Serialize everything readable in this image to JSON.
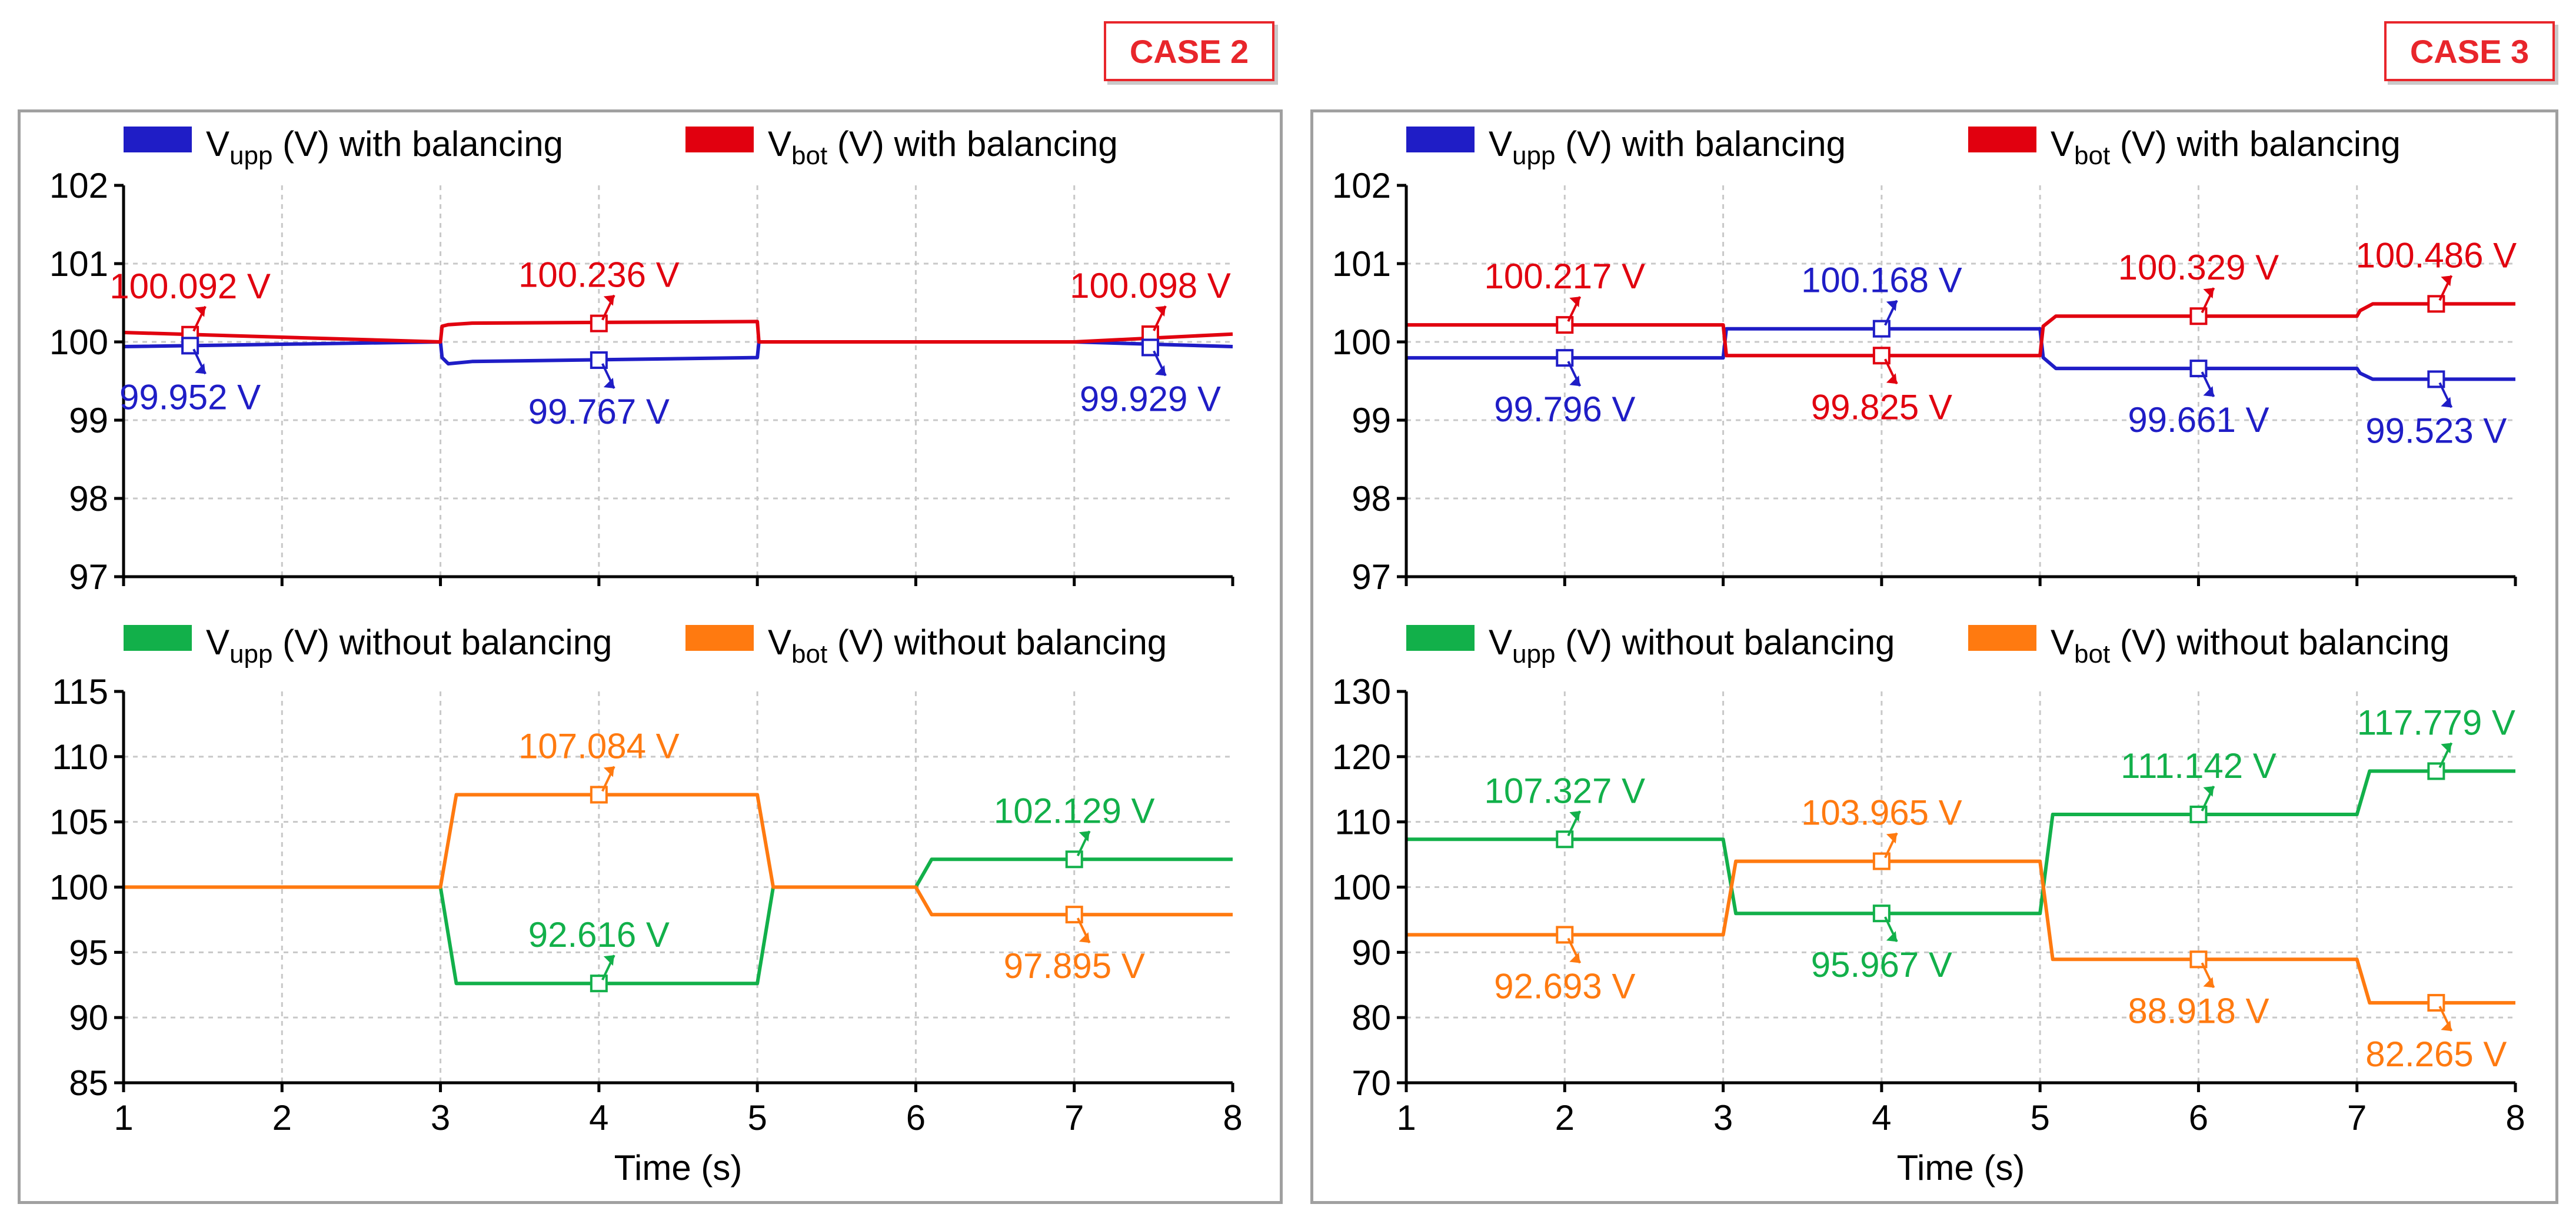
{
  "cases": [
    {
      "label": "CASE 2"
    },
    {
      "label": "CASE 3"
    }
  ],
  "legend": {
    "top": [
      {
        "sym": "V",
        "sub": "upp",
        "rest": " (V) with balancing",
        "color": "#1f1dc6"
      },
      {
        "sym": "V",
        "sub": "bot",
        "rest": " (V) with balancing",
        "color": "#e1000f"
      }
    ],
    "bottom": [
      {
        "sym": "V",
        "sub": "upp",
        "rest": " (V) without balancing",
        "color": "#12b04a"
      },
      {
        "sym": "V",
        "sub": "bot",
        "rest": " (V) without balancing",
        "color": "#ff7a10"
      }
    ]
  },
  "colors": {
    "upp_with": "#1f1dc6",
    "bot_with": "#e1000f",
    "upp_without": "#12b04a",
    "bot_without": "#ff7a10",
    "grid": "#c8c8c8",
    "frame": "#a0a0a0",
    "case": "#e8262b"
  },
  "chart_data": [
    {
      "type": "line",
      "case": "CASE 2",
      "position": "top",
      "xlim": [
        1,
        8
      ],
      "ylim": [
        97,
        102
      ],
      "xticks": [
        1,
        2,
        3,
        4,
        5,
        6,
        7,
        8
      ],
      "yticks": [
        97,
        98,
        99,
        100,
        101,
        102
      ],
      "show_x_ticklabels": false,
      "grid": true,
      "series": [
        {
          "name": "Vupp (V) with balancing",
          "color_key": "upp_with",
          "x": [
            1,
            3,
            3.01,
            3.05,
            3.2,
            5,
            5.01,
            6,
            7,
            8
          ],
          "y": [
            99.94,
            100,
            99.8,
            99.72,
            99.75,
            99.8,
            100,
            100,
            100,
            99.94
          ]
        },
        {
          "name": "Vbot (V) with balancing",
          "color_key": "bot_with",
          "x": [
            1,
            3,
            3.01,
            3.05,
            3.2,
            5,
            5.01,
            6,
            7,
            8
          ],
          "y": [
            100.12,
            100,
            100.2,
            100.22,
            100.24,
            100.26,
            100,
            100,
            100,
            100.1
          ]
        }
      ],
      "annotations": [
        {
          "text": "100.092 V",
          "x": 1.42,
          "y": 100.092,
          "series": "bot",
          "label_pos": "above"
        },
        {
          "text": "99.952 V",
          "x": 1.42,
          "y": 99.952,
          "series": "upp",
          "label_pos": "below"
        },
        {
          "text": "100.236 V",
          "x": 4,
          "y": 100.236,
          "series": "bot",
          "label_pos": "above"
        },
        {
          "text": "99.767 V",
          "x": 4,
          "y": 99.767,
          "series": "upp",
          "label_pos": "below"
        },
        {
          "text": "100.098 V",
          "x": 7.48,
          "y": 100.098,
          "series": "bot",
          "label_pos": "above"
        },
        {
          "text": "99.929 V",
          "x": 7.48,
          "y": 99.929,
          "series": "upp",
          "label_pos": "below"
        }
      ]
    },
    {
      "type": "line",
      "case": "CASE 2",
      "position": "bottom",
      "xlim": [
        1,
        8
      ],
      "ylim": [
        85,
        115
      ],
      "xticks": [
        1,
        2,
        3,
        4,
        5,
        6,
        7,
        8
      ],
      "yticks": [
        85,
        90,
        95,
        100,
        105,
        110,
        115
      ],
      "show_x_ticklabels": true,
      "xlabel": "Time (s)",
      "grid": true,
      "series": [
        {
          "name": "Vupp (V) without balancing",
          "color_key": "upp_without",
          "x": [
            1,
            3,
            3.1,
            5,
            5.1,
            6,
            6.1,
            8
          ],
          "y": [
            100,
            100,
            92.616,
            92.616,
            100,
            100,
            102.129,
            102.129
          ]
        },
        {
          "name": "Vbot (V) without balancing",
          "color_key": "bot_without",
          "x": [
            1,
            3,
            3.1,
            5,
            5.1,
            6,
            6.1,
            8
          ],
          "y": [
            100,
            100,
            107.084,
            107.084,
            100,
            100,
            97.895,
            97.895
          ]
        }
      ],
      "annotations": [
        {
          "text": "107.084 V",
          "x": 4,
          "y": 107.084,
          "series": "bot",
          "label_pos": "above"
        },
        {
          "text": "92.616 V",
          "x": 4,
          "y": 92.616,
          "series": "upp",
          "label_pos": "above"
        },
        {
          "text": "102.129 V",
          "x": 7,
          "y": 102.129,
          "series": "upp",
          "label_pos": "above"
        },
        {
          "text": "97.895 V",
          "x": 7,
          "y": 97.895,
          "series": "bot",
          "label_pos": "below"
        }
      ]
    },
    {
      "type": "line",
      "case": "CASE 3",
      "position": "top",
      "xlim": [
        1,
        8
      ],
      "ylim": [
        97,
        102
      ],
      "xticks": [
        1,
        2,
        3,
        4,
        5,
        6,
        7,
        8
      ],
      "yticks": [
        97,
        98,
        99,
        100,
        101,
        102
      ],
      "show_x_ticklabels": false,
      "grid": true,
      "series": [
        {
          "name": "Vupp (V) with balancing",
          "color_key": "upp_with",
          "x": [
            1,
            3,
            3.02,
            5,
            5.02,
            5.1,
            7,
            7.02,
            7.1,
            8
          ],
          "y": [
            99.796,
            99.796,
            100.168,
            100.168,
            99.8,
            99.661,
            99.661,
            99.6,
            99.523,
            99.523
          ]
        },
        {
          "name": "Vbot (V) with balancing",
          "color_key": "bot_with",
          "x": [
            1,
            3,
            3.02,
            5,
            5.02,
            5.1,
            7,
            7.02,
            7.1,
            8
          ],
          "y": [
            100.217,
            100.217,
            99.825,
            99.825,
            100.2,
            100.329,
            100.329,
            100.4,
            100.486,
            100.486
          ]
        }
      ],
      "annotations": [
        {
          "text": "100.217 V",
          "x": 2,
          "y": 100.217,
          "series": "bot",
          "label_pos": "above"
        },
        {
          "text": "99.796 V",
          "x": 2,
          "y": 99.796,
          "series": "upp",
          "label_pos": "below"
        },
        {
          "text": "100.168 V",
          "x": 4,
          "y": 100.168,
          "series": "upp",
          "label_pos": "above"
        },
        {
          "text": "99.825 V",
          "x": 4,
          "y": 99.825,
          "series": "bot",
          "label_pos": "below"
        },
        {
          "text": "100.329 V",
          "x": 6,
          "y": 100.329,
          "series": "bot",
          "label_pos": "above"
        },
        {
          "text": "99.661 V",
          "x": 6,
          "y": 99.661,
          "series": "upp",
          "label_pos": "below"
        },
        {
          "text": "100.486 V",
          "x": 7.5,
          "y": 100.486,
          "series": "bot",
          "label_pos": "above"
        },
        {
          "text": "99.523 V",
          "x": 7.5,
          "y": 99.523,
          "series": "upp",
          "label_pos": "below"
        }
      ]
    },
    {
      "type": "line",
      "case": "CASE 3",
      "position": "bottom",
      "xlim": [
        1,
        8
      ],
      "ylim": [
        70,
        130
      ],
      "xticks": [
        1,
        2,
        3,
        4,
        5,
        6,
        7,
        8
      ],
      "yticks": [
        70,
        80,
        90,
        100,
        110,
        120,
        130
      ],
      "show_x_ticklabels": true,
      "xlabel": "Time (s)",
      "grid": true,
      "series": [
        {
          "name": "Vupp (V) without balancing",
          "color_key": "upp_without",
          "x": [
            1,
            3,
            3.08,
            5,
            5.08,
            7,
            7.08,
            8
          ],
          "y": [
            107.327,
            107.327,
            95.967,
            95.967,
            111.142,
            111.142,
            117.779,
            117.779
          ]
        },
        {
          "name": "Vbot (V) without balancing",
          "color_key": "bot_without",
          "x": [
            1,
            3,
            3.08,
            5,
            5.08,
            7,
            7.08,
            8
          ],
          "y": [
            92.693,
            92.693,
            103.965,
            103.965,
            88.918,
            88.918,
            82.265,
            82.265
          ]
        }
      ],
      "annotations": [
        {
          "text": "107.327 V",
          "x": 2,
          "y": 107.327,
          "series": "upp",
          "label_pos": "above"
        },
        {
          "text": "92.693 V",
          "x": 2,
          "y": 92.693,
          "series": "bot",
          "label_pos": "below"
        },
        {
          "text": "103.965 V",
          "x": 4,
          "y": 103.965,
          "series": "bot",
          "label_pos": "above"
        },
        {
          "text": "95.967 V",
          "x": 4,
          "y": 95.967,
          "series": "upp",
          "label_pos": "below"
        },
        {
          "text": "111.142 V",
          "x": 6,
          "y": 111.142,
          "series": "upp",
          "label_pos": "above"
        },
        {
          "text": "88.918 V",
          "x": 6,
          "y": 88.918,
          "series": "bot",
          "label_pos": "below"
        },
        {
          "text": "117.779 V",
          "x": 7.5,
          "y": 117.779,
          "series": "upp",
          "label_pos": "above"
        },
        {
          "text": "82.265 V",
          "x": 7.5,
          "y": 82.265,
          "series": "bot",
          "label_pos": "below"
        }
      ]
    }
  ]
}
